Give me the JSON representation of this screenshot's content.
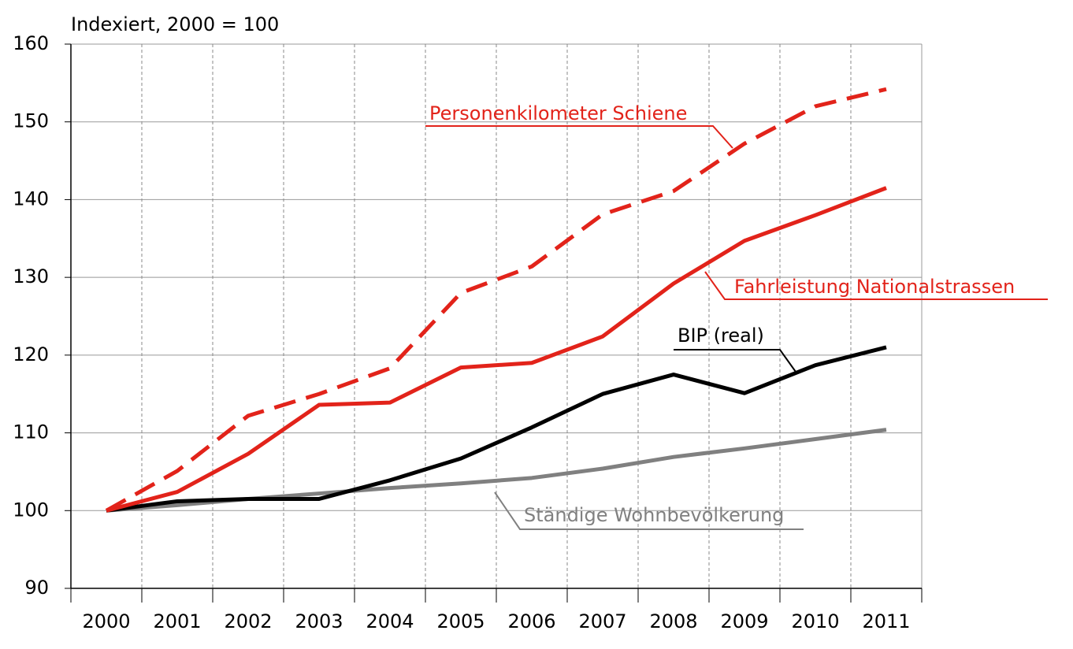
{
  "chart_data": {
    "type": "line",
    "y_label": "Indexiert, 2000 = 100",
    "categories": [
      "2000",
      "2001",
      "2002",
      "2003",
      "2004",
      "2005",
      "2006",
      "2007",
      "2008",
      "2009",
      "2010",
      "2011"
    ],
    "series": [
      {
        "name": "Personenkilometer Schiene",
        "color": "#e2231a",
        "linestyle": "dashed",
        "values": [
          100,
          105.1,
          112.2,
          115,
          118.3,
          128,
          131.4,
          138.1,
          141.1,
          147.2,
          152,
          154.2
        ]
      },
      {
        "name": "Fahrleistung Nationalstrassen",
        "color": "#e2231a",
        "linestyle": "solid",
        "values": [
          100,
          102.4,
          107.3,
          113.6,
          113.9,
          118.4,
          119,
          122.4,
          129.2,
          134.7,
          138,
          141.5
        ]
      },
      {
        "name": "BIP (real)",
        "color": "#000000",
        "linestyle": "solid",
        "values": [
          100,
          101.2,
          101.5,
          101.5,
          103.9,
          106.7,
          110.7,
          115,
          117.5,
          115.1,
          118.7,
          121
        ]
      },
      {
        "name": "Ständige Wohnbevölkerung",
        "color": "#808080",
        "linestyle": "solid",
        "values": [
          100,
          100.7,
          101.5,
          102.2,
          102.9,
          103.5,
          104.2,
          105.4,
          106.9,
          108,
          109.2,
          110.4
        ]
      }
    ],
    "ylim": [
      90,
      160
    ],
    "yticks": [
      90,
      100,
      110,
      120,
      130,
      140,
      150,
      160
    ],
    "grid": true
  }
}
